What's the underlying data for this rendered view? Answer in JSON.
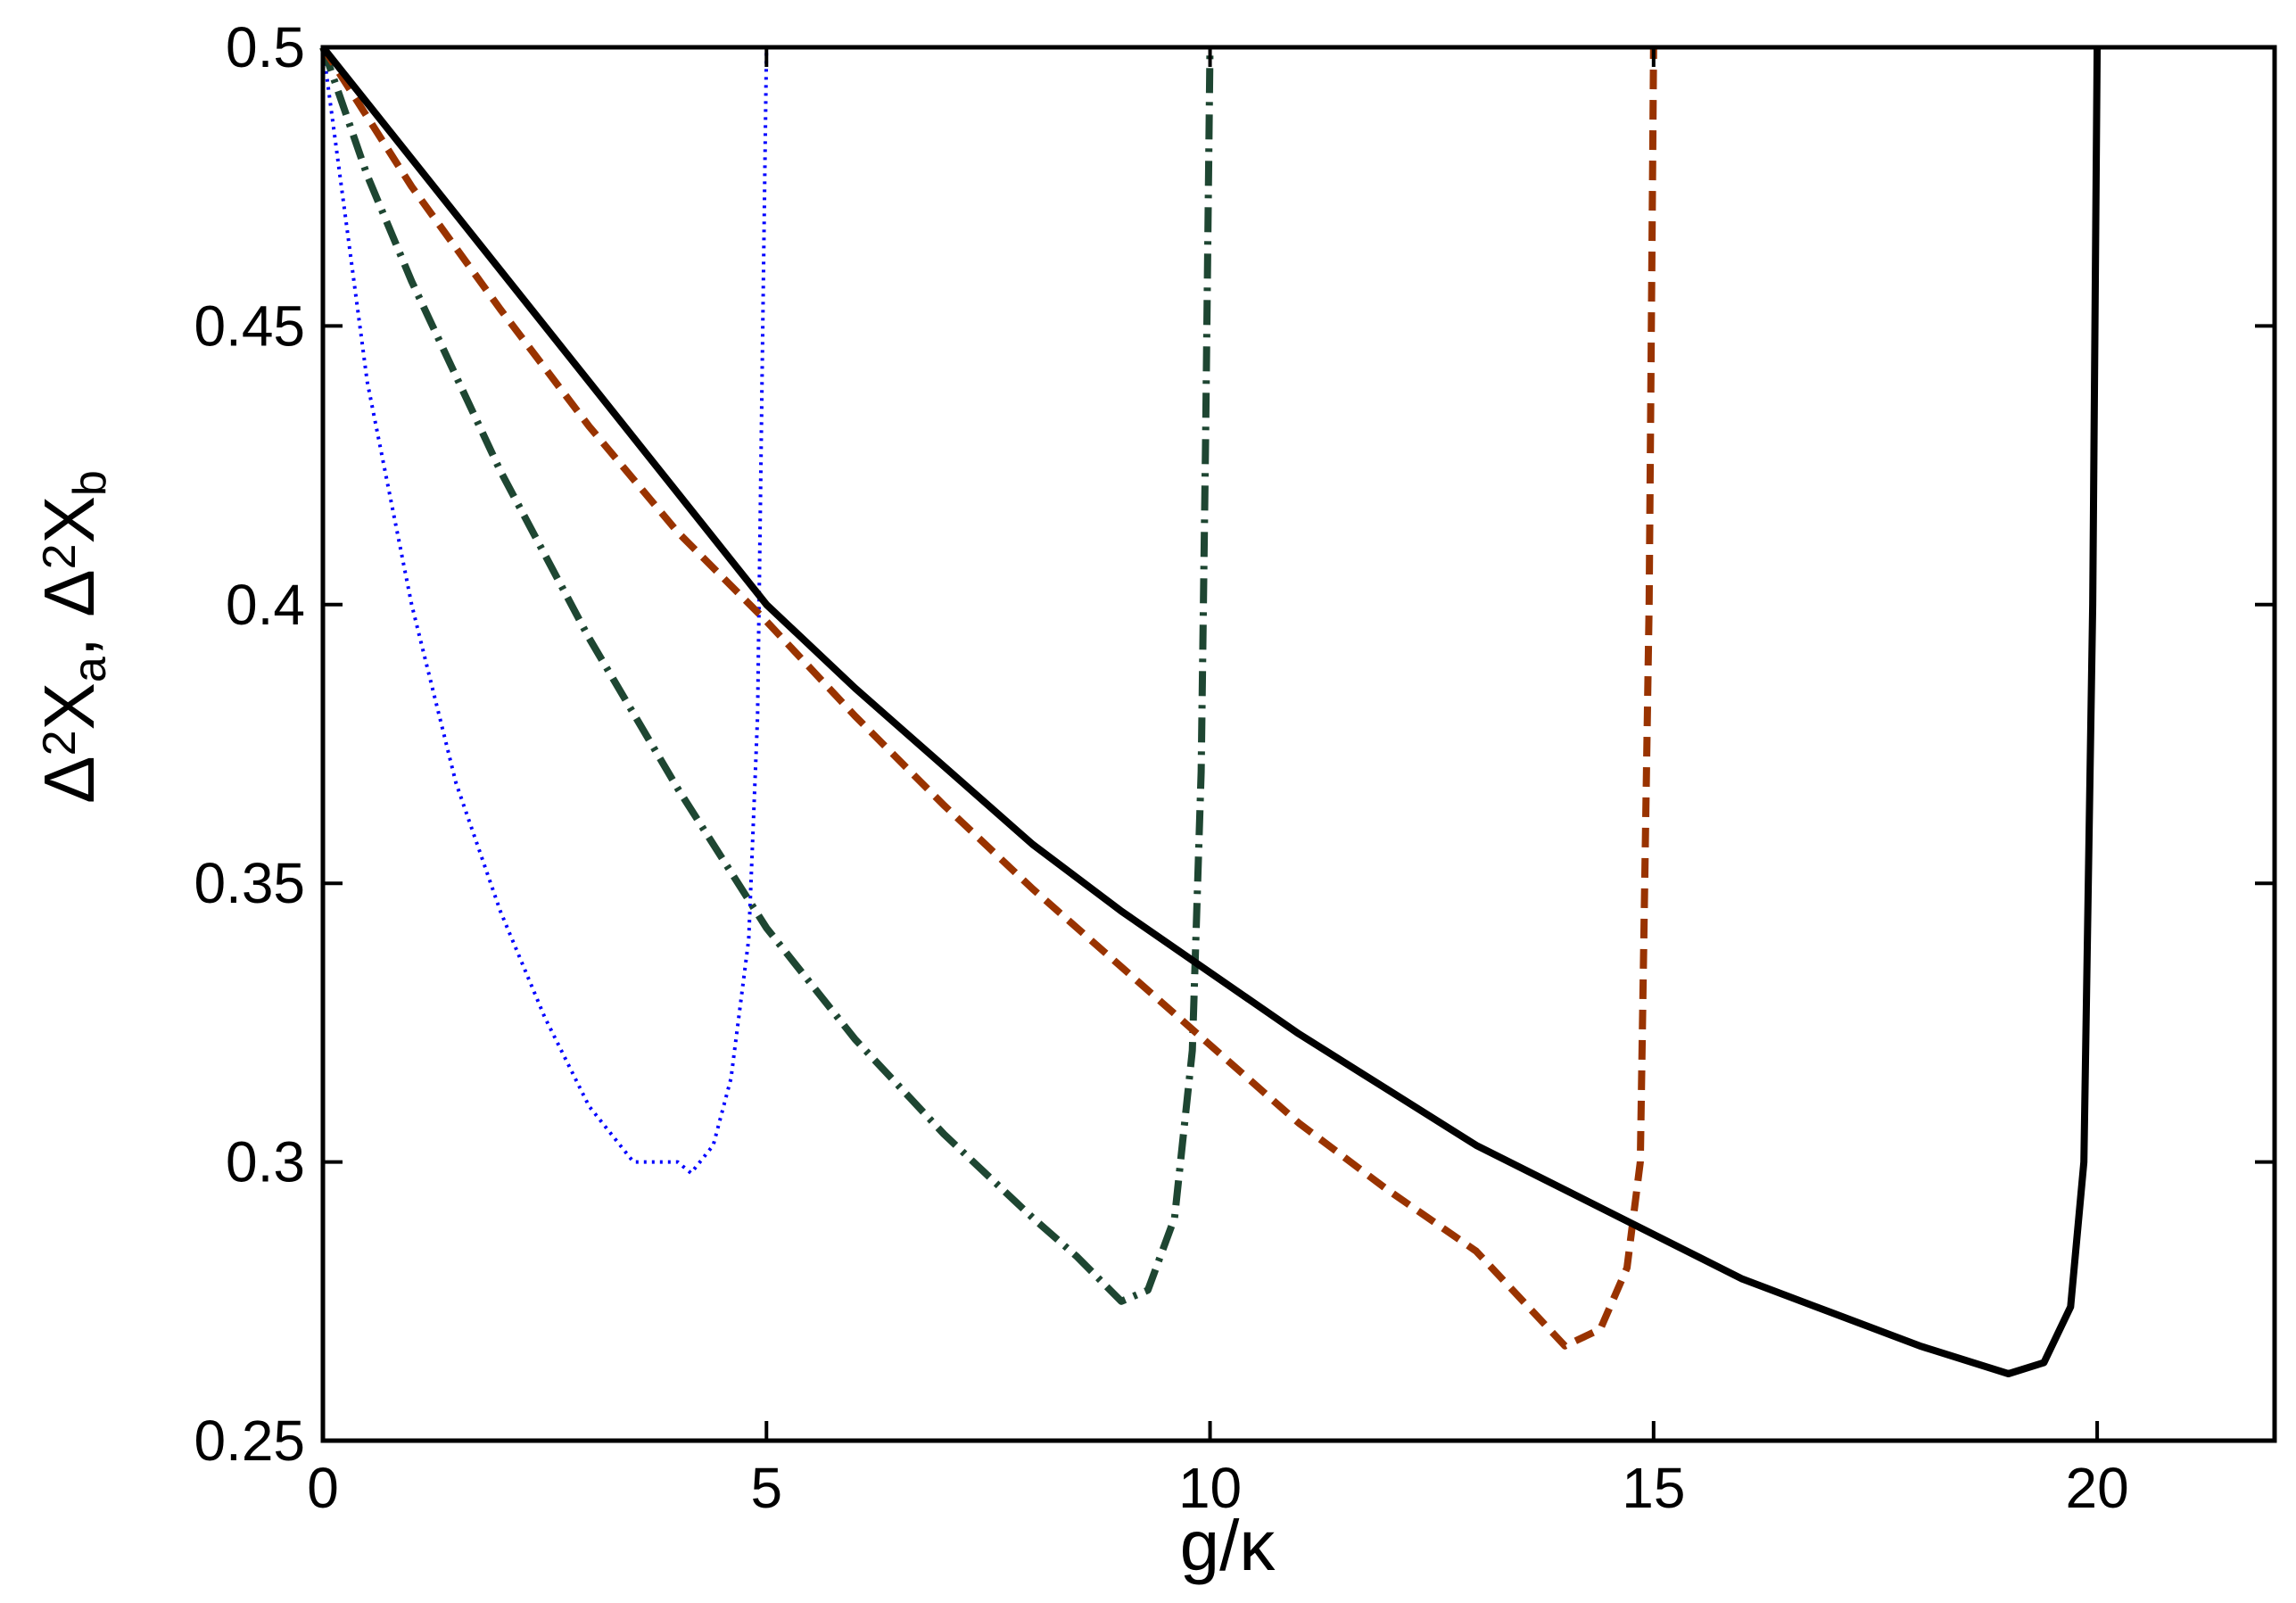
{
  "chart_data": {
    "type": "line",
    "title": "",
    "xlabel": "g/κ",
    "ylabel": {
      "parts": [
        {
          "text": "Δ",
          "role": "normal"
        },
        {
          "text": "2",
          "role": "sup"
        },
        {
          "text": "X",
          "role": "normal"
        },
        {
          "text": "a",
          "role": "sub"
        },
        {
          "text": ", Δ",
          "role": "normal"
        },
        {
          "text": "2",
          "role": "sup"
        },
        {
          "text": "X",
          "role": "normal"
        },
        {
          "text": "b",
          "role": "sub"
        }
      ]
    },
    "xlim": [
      0,
      22
    ],
    "ylim": [
      0.25,
      0.5
    ],
    "xticks": [
      0,
      5,
      10,
      15,
      20
    ],
    "xtick_labels": [
      "0",
      "5",
      "10",
      "15",
      "20"
    ],
    "yticks": [
      0.25,
      0.3,
      0.35,
      0.4,
      0.45,
      0.5
    ],
    "ytick_labels": [
      "0.25",
      "0.3",
      "0.35",
      "0.4",
      "0.45",
      "0.5"
    ],
    "grid": false,
    "legend": "none",
    "series": [
      {
        "color": "#0000ff",
        "style": "dotted",
        "x": [
          0,
          0.25,
          0.5,
          1,
          1.5,
          2,
          2.5,
          3,
          3.5,
          4,
          4.15,
          4.4,
          4.6,
          4.8,
          4.9,
          4.95,
          5
        ],
        "y": [
          0.5,
          0.47,
          0.44,
          0.4,
          0.368,
          0.345,
          0.326,
          0.31,
          0.3,
          0.3,
          0.298,
          0.303,
          0.315,
          0.34,
          0.38,
          0.44,
          0.5
        ]
      },
      {
        "color": "#1e4632",
        "style": "dashdot",
        "x": [
          0,
          0.5,
          1,
          2,
          3,
          4,
          5,
          6,
          7,
          8,
          8.5,
          9,
          9.3,
          9.6,
          9.8,
          9.9,
          9.95,
          10
        ],
        "y": [
          0.5,
          0.477,
          0.458,
          0.424,
          0.394,
          0.367,
          0.342,
          0.322,
          0.305,
          0.29,
          0.283,
          0.275,
          0.277,
          0.29,
          0.32,
          0.37,
          0.43,
          0.5
        ]
      },
      {
        "color": "#993300",
        "style": "dashed",
        "x": [
          0,
          1,
          2,
          3,
          4,
          5,
          6,
          7,
          8,
          9,
          10,
          11,
          12,
          13,
          14,
          14.4,
          14.7,
          14.85,
          14.95,
          15
        ],
        "y": [
          0.5,
          0.475,
          0.453,
          0.432,
          0.413,
          0.397,
          0.38,
          0.364,
          0.349,
          0.335,
          0.321,
          0.307,
          0.295,
          0.284,
          0.267,
          0.27,
          0.281,
          0.3,
          0.4,
          0.5
        ]
      },
      {
        "color": "#000000",
        "style": "solid",
        "x": [
          0,
          1,
          2,
          3,
          4,
          5,
          6,
          7,
          8,
          9,
          10,
          11,
          12,
          13,
          14,
          15,
          16,
          17,
          18,
          19,
          19.4,
          19.7,
          19.85,
          19.95,
          20
        ],
        "y": [
          0.5,
          0.48,
          0.46,
          0.44,
          0.42,
          0.4,
          0.385,
          0.371,
          0.357,
          0.345,
          0.334,
          0.323,
          0.313,
          0.303,
          0.295,
          0.287,
          0.279,
          0.273,
          0.267,
          0.262,
          0.264,
          0.274,
          0.3,
          0.4,
          0.5
        ]
      }
    ]
  }
}
